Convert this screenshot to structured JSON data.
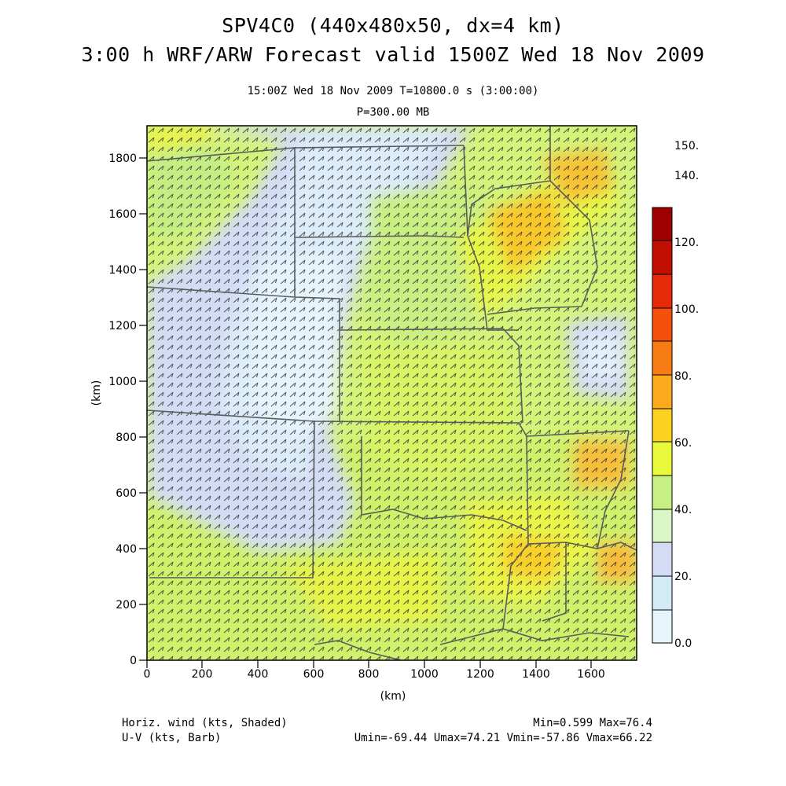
{
  "title": {
    "line1": "SPV4C0 (440x480x50, dx=4 km)",
    "line2": "3:00 h WRF/ARW Forecast valid 1500Z Wed 18 Nov 2009"
  },
  "subtitle": {
    "time": "15:00Z Wed 18 Nov 2009     T=10800.0 s (3:00:00)",
    "level": "P=300.00 MB"
  },
  "axes": {
    "x_label": "(km)",
    "y_label": "(km)",
    "x_ticks": [
      "0",
      "200",
      "400",
      "600",
      "800",
      "1000",
      "1200",
      "1400",
      "1600"
    ],
    "y_ticks": [
      "0",
      "200",
      "400",
      "600",
      "800",
      "1000",
      "1200",
      "1400",
      "1600",
      "1800"
    ]
  },
  "colorbar": {
    "labels": [
      "0.0",
      "20.",
      "40.",
      "60.",
      "80.",
      "100.",
      "120.",
      "140.",
      "150."
    ],
    "colors": [
      "#e6f4fb",
      "#d2ebf7",
      "#d3dcf4",
      "#d9f7c6",
      "#c6ef84",
      "#e9f83a",
      "#fbd21f",
      "#fbaa1c",
      "#f87c14",
      "#f54f0c",
      "#e52a0a",
      "#c20f04",
      "#9e0000"
    ]
  },
  "footer": {
    "left1": "Horiz. wind (kts, Shaded)",
    "left2": "U-V (kts, Barb)",
    "right1": "Min=0.599 Max=76.4",
    "right2": "Umin=-69.44 Umax=74.21 Vmin=-57.86 Vmax=66.22"
  }
}
